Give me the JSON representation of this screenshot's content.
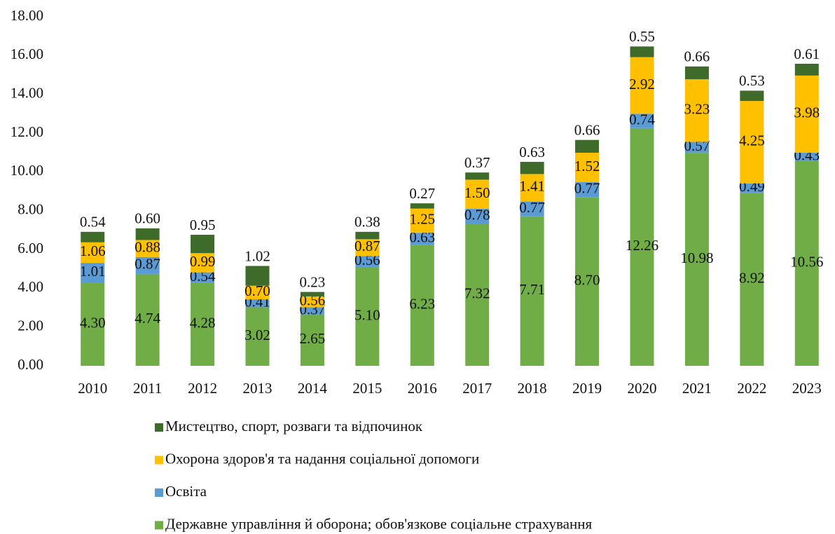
{
  "chart_data": {
    "type": "stacked_bar",
    "categories": [
      "2010",
      "2011",
      "2012",
      "2013",
      "2014",
      "2015",
      "2016",
      "2017",
      "2018",
      "2019",
      "2020",
      "2021",
      "2022",
      "2023"
    ],
    "series": [
      {
        "name": "Державне управління й оборона; обов'язкове соціальне страхування",
        "color": "#70ad47",
        "values": [
          4.3,
          4.74,
          4.28,
          3.02,
          2.65,
          5.1,
          6.23,
          7.32,
          7.71,
          8.7,
          12.26,
          10.98,
          8.92,
          10.56
        ],
        "value_labels": [
          "4.30",
          "4.74",
          "4.28",
          "3.02",
          "2.65",
          "5.10",
          "6.23",
          "7.32",
          "7.71",
          "8.70",
          "12.26",
          "10.98",
          "8.92",
          "10.56"
        ]
      },
      {
        "name": "Освіта",
        "color": "#5b9bd5",
        "values": [
          1.01,
          0.87,
          0.54,
          0.41,
          0.37,
          0.56,
          0.63,
          0.78,
          0.77,
          0.77,
          0.74,
          0.57,
          0.49,
          0.43
        ],
        "value_labels": [
          "1.01",
          "0.87",
          "0.54",
          "0.41",
          "0.37",
          "0.56",
          "0.63",
          "0.78",
          "0.77",
          "0.77",
          "0.74",
          "0.57",
          "0.49",
          "0.43"
        ]
      },
      {
        "name": "Охорона здоров'я та надання соціальної допомоги",
        "color": "#ffc000",
        "values": [
          1.06,
          0.88,
          0.99,
          0.7,
          0.56,
          0.87,
          1.25,
          1.5,
          1.41,
          1.52,
          2.92,
          3.23,
          4.25,
          3.98
        ],
        "value_labels": [
          "1.06",
          "0.88",
          "0.99",
          "0.70",
          "0.56",
          "0.87",
          "1.25",
          "1.50",
          "1.41",
          "1.52",
          "2.92",
          "3.23",
          "4.25",
          "3.98"
        ]
      },
      {
        "name": "Мистецтво, спорт, розваги та відпочинок",
        "color": "#3e6b2a",
        "values": [
          0.54,
          0.6,
          0.95,
          1.02,
          0.23,
          0.38,
          0.27,
          0.37,
          0.63,
          0.66,
          0.55,
          0.66,
          0.53,
          0.61
        ],
        "value_labels": [
          "0.54",
          "0.60",
          "0.95",
          "1.02",
          "0.23",
          "0.38",
          "0.27",
          "0.37",
          "0.63",
          "0.66",
          "0.55",
          "0.66",
          "0.53",
          "0.61"
        ]
      }
    ],
    "ylim": [
      0,
      18
    ],
    "yticks": [
      {
        "value": 0,
        "label": "0.00"
      },
      {
        "value": 2,
        "label": "2.00"
      },
      {
        "value": 4,
        "label": "4.00"
      },
      {
        "value": 6,
        "label": "6.00"
      },
      {
        "value": 8,
        "label": "8.00"
      },
      {
        "value": 10,
        "label": "10.00"
      },
      {
        "value": 12,
        "label": "12.00"
      },
      {
        "value": 14,
        "label": "14.00"
      },
      {
        "value": 16,
        "label": "16.00"
      },
      {
        "value": 18,
        "label": "18.00"
      }
    ],
    "grid": false
  }
}
